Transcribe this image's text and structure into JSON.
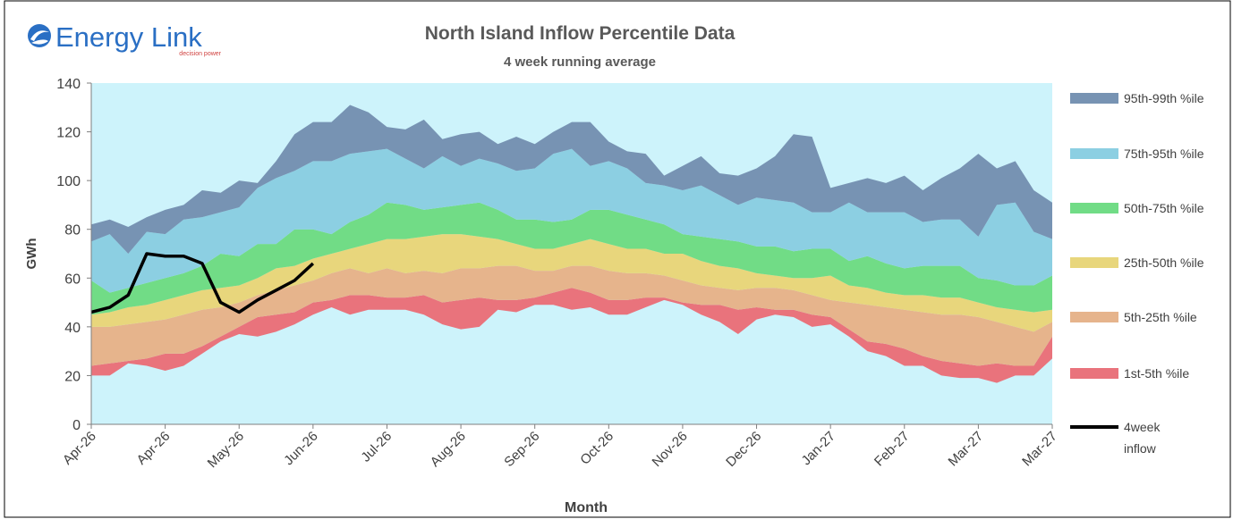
{
  "logo": {
    "name": "Energy Link",
    "tagline": "decision power"
  },
  "chart_data": {
    "type": "stacked_area",
    "title": "North Island Inflow Percentile Data",
    "subtitle": "4 week running average",
    "y_label": "GWh",
    "x_label": "Month",
    "categories": [
      "Apr-26",
      null,
      null,
      null,
      "Apr-26",
      null,
      null,
      null,
      "May-26",
      null,
      null,
      null,
      "Jun-26",
      null,
      null,
      null,
      "Jul-26",
      null,
      null,
      null,
      "Aug-26",
      null,
      null,
      null,
      "Sep-26",
      null,
      null,
      null,
      "Oct-26",
      null,
      null,
      null,
      "Nov-26",
      null,
      null,
      null,
      "Dec-26",
      null,
      null,
      null,
      "Jan-27",
      null,
      null,
      null,
      "Feb-27",
      null,
      null,
      null,
      "Mar-27",
      null,
      null,
      null,
      "Mar-27"
    ],
    "ylim": [
      0,
      140
    ],
    "yticks": [
      0,
      20,
      40,
      60,
      80,
      100,
      120,
      140
    ],
    "grid": false,
    "legend": "right",
    "background_color": "#cdf3fb",
    "base_values": [
      20,
      20,
      25,
      24,
      22,
      24,
      29,
      34,
      37,
      36,
      38,
      41,
      45,
      48,
      45,
      47,
      47,
      47,
      45,
      41,
      39,
      40,
      47,
      46,
      49,
      49,
      47,
      48,
      45,
      45,
      48,
      51,
      49,
      45,
      42,
      37,
      43,
      45,
      44,
      40,
      41,
      36,
      30,
      28,
      24,
      24,
      20,
      19,
      19,
      17,
      20,
      20,
      27
    ],
    "series": [
      {
        "name": "1st-5th %ile",
        "color": "#e9737c",
        "values": [
          4,
          5,
          1,
          3,
          7,
          5,
          3,
          2,
          3,
          8,
          7,
          5,
          5,
          3,
          8,
          6,
          5,
          5,
          8,
          9,
          12,
          12,
          4,
          5,
          3,
          5,
          9,
          6,
          6,
          6,
          4,
          1,
          1,
          4,
          7,
          10,
          5,
          2,
          3,
          5,
          3,
          3,
          4,
          5,
          7,
          4,
          6,
          6,
          5,
          8,
          4,
          4,
          9
        ]
      },
      {
        "name": "5th-25th %ile",
        "color": "#e6b48c",
        "values": [
          16,
          15,
          15,
          15,
          14,
          16,
          15,
          12,
          10,
          9,
          10,
          11,
          9,
          11,
          11,
          9,
          12,
          10,
          10,
          12,
          13,
          12,
          14,
          14,
          11,
          9,
          9,
          11,
          12,
          11,
          10,
          9,
          9,
          8,
          7,
          8,
          8,
          9,
          8,
          8,
          7,
          11,
          15,
          15,
          16,
          18,
          19,
          20,
          20,
          17,
          16,
          14,
          6
        ]
      },
      {
        "name": "25th-50th %ile",
        "color": "#e8d67c",
        "values": [
          5,
          6,
          7,
          7,
          8,
          8,
          8,
          8,
          7,
          7,
          9,
          8,
          9,
          8,
          8,
          12,
          12,
          14,
          14,
          16,
          14,
          13,
          11,
          9,
          9,
          9,
          9,
          11,
          11,
          10,
          10,
          9,
          11,
          10,
          9,
          9,
          6,
          5,
          5,
          7,
          10,
          7,
          7,
          6,
          6,
          7,
          7,
          7,
          6,
          6,
          7,
          8,
          5
        ]
      },
      {
        "name": "50th-75th %ile",
        "color": "#71dc86",
        "values": [
          14,
          8,
          8,
          9,
          9,
          9,
          10,
          14,
          12,
          14,
          10,
          15,
          12,
          8,
          11,
          12,
          15,
          14,
          11,
          11,
          12,
          14,
          12,
          10,
          12,
          11,
          10,
          12,
          14,
          14,
          12,
          12,
          8,
          10,
          11,
          11,
          11,
          12,
          11,
          12,
          11,
          10,
          13,
          12,
          11,
          12,
          13,
          13,
          10,
          11,
          10,
          11,
          14
        ]
      },
      {
        "name": "75th-95th %ile",
        "color": "#8ccfe2",
        "values": [
          16,
          24,
          14,
          21,
          18,
          22,
          20,
          17,
          20,
          23,
          27,
          24,
          28,
          30,
          28,
          26,
          22,
          19,
          17,
          21,
          16,
          18,
          19,
          20,
          21,
          28,
          29,
          18,
          20,
          19,
          15,
          16,
          18,
          21,
          18,
          15,
          20,
          19,
          20,
          15,
          15,
          24,
          18,
          21,
          23,
          18,
          19,
          19,
          17,
          31,
          34,
          22,
          15
        ]
      },
      {
        "name": "95th-99th %ile",
        "color": "#7793b3",
        "values": [
          7,
          6,
          11,
          6,
          10,
          6,
          11,
          8,
          11,
          2,
          7,
          15,
          16,
          16,
          20,
          16,
          9,
          12,
          20,
          7,
          13,
          11,
          8,
          14,
          10,
          9,
          11,
          18,
          8,
          7,
          12,
          4,
          10,
          12,
          9,
          12,
          12,
          18,
          28,
          31,
          10,
          8,
          14,
          12,
          15,
          13,
          17,
          21,
          34,
          15,
          17,
          17,
          15
        ]
      }
    ],
    "line": {
      "name": "4week inflow",
      "color": "#000000",
      "values": [
        46,
        48,
        53,
        70,
        69,
        69,
        66,
        50,
        46,
        51,
        55,
        59,
        66,
        null,
        null,
        null,
        null,
        null,
        null,
        null,
        null,
        null,
        null,
        null,
        null,
        null,
        null,
        null,
        null,
        null,
        null,
        null,
        null,
        null,
        null,
        null,
        null,
        null,
        null,
        null,
        null,
        null,
        null,
        null,
        null,
        null,
        null,
        null,
        null,
        null,
        null,
        null,
        null
      ]
    }
  }
}
